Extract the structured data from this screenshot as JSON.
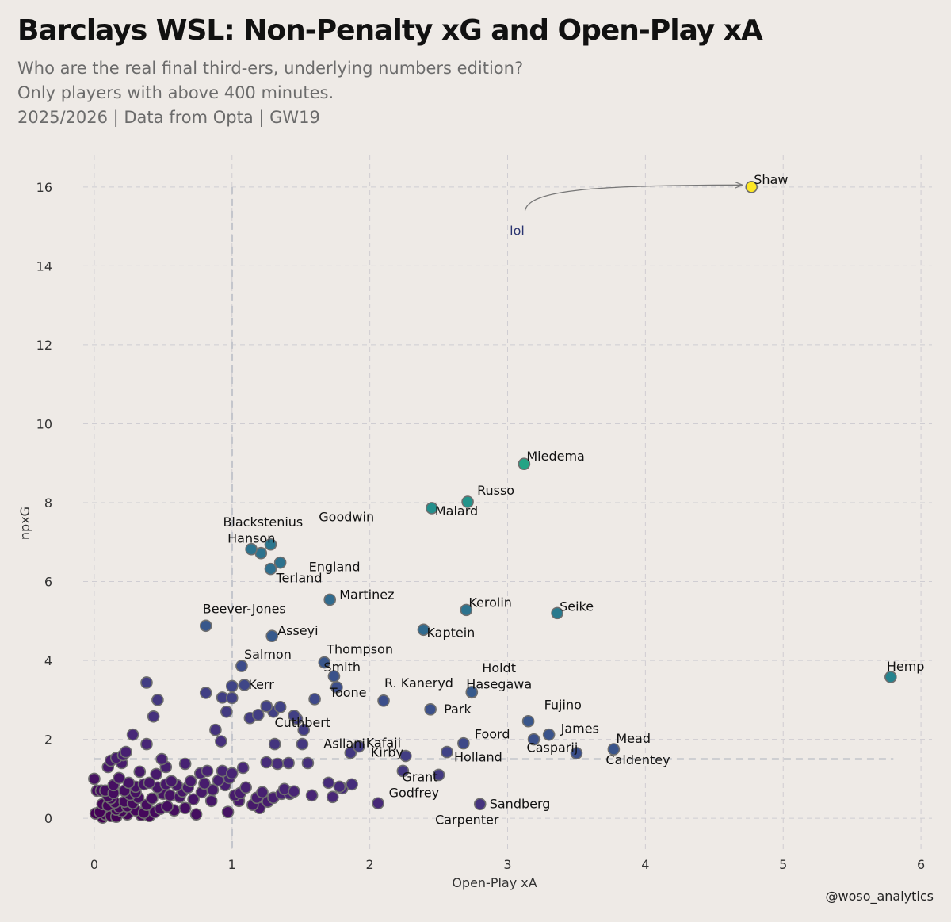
{
  "header": {
    "title": "Barclays WSL: Non-Penalty xG and Open-Play xA",
    "subtitle_line1": "Who are the real final third-ers, underlying numbers edition?",
    "subtitle_line2": "Only players with above 400 minutes.",
    "subtitle_line3": "2025/2026 | Data from Opta | GW19"
  },
  "credit": "@woso_analytics",
  "colors": {
    "background": "#eeeae6",
    "grid": "#cfcdd2",
    "refline": "#c4c6cc",
    "point_edge": "#6e6e6e",
    "annotation_text": "#2a3470",
    "viridis_low": "#440154",
    "viridis_high": "#fde725"
  },
  "chart_data": {
    "type": "scatter",
    "title": "Barclays WSL: Non-Penalty xG and Open-Play xA",
    "xlabel": "Open-Play xA",
    "ylabel": "npxG",
    "xlim": [
      -0.08,
      6.08
    ],
    "ylim": [
      -0.8,
      16.8
    ],
    "xticks": [
      0,
      1,
      2,
      3,
      4,
      5,
      6
    ],
    "yticks": [
      0,
      2,
      4,
      6,
      8,
      10,
      12,
      14,
      16
    ],
    "grid": true,
    "color_metric": "npxG + Open-Play xA (viridis)",
    "reference_lines": {
      "vertical_x": 1.0,
      "vertical_y_top": 16.0,
      "horizontal_y": 1.5,
      "horizontal_x_right": 5.8
    },
    "annotation": {
      "text": "lol",
      "x": 3.0,
      "y": 15.0,
      "arrow_to_x": 4.7,
      "arrow_to_y": 16.05
    },
    "labeled_points": [
      {
        "name": "Shaw",
        "x": 4.77,
        "y": 16.0
      },
      {
        "name": "Hemp",
        "x": 5.78,
        "y": 3.58
      },
      {
        "name": "Miedema",
        "x": 3.12,
        "y": 8.98
      },
      {
        "name": "Russo",
        "x": 2.71,
        "y": 8.02
      },
      {
        "name": "Malard",
        "x": 2.45,
        "y": 7.86
      },
      {
        "name": "Blackstenius",
        "x": 1.28,
        "y": 6.94
      },
      {
        "name": "Goodwin",
        "x": 1.21,
        "y": 6.72
      },
      {
        "name": "Hanson",
        "x": 1.14,
        "y": 6.82
      },
      {
        "name": "England",
        "x": 1.35,
        "y": 6.48
      },
      {
        "name": "Terland",
        "x": 1.28,
        "y": 6.32
      },
      {
        "name": "Martinez",
        "x": 1.71,
        "y": 5.54
      },
      {
        "name": "Kerolin",
        "x": 2.7,
        "y": 5.28
      },
      {
        "name": "Seike",
        "x": 3.36,
        "y": 5.2
      },
      {
        "name": "Beever-Jones",
        "x": 0.81,
        "y": 4.88
      },
      {
        "name": "Kaptein",
        "x": 2.39,
        "y": 4.78
      },
      {
        "name": "Asseyi",
        "x": 1.29,
        "y": 4.62
      },
      {
        "name": "Salmon",
        "x": 1.07,
        "y": 3.86
      },
      {
        "name": "Thompson",
        "x": 1.67,
        "y": 3.95
      },
      {
        "name": "Smith",
        "x": 1.74,
        "y": 3.6
      },
      {
        "name": "Holdt",
        "x": 2.74,
        "y": 3.2
      },
      {
        "name": "Hasegawa",
        "x": 2.74,
        "y": 3.19
      },
      {
        "name": "Kerr",
        "x": 1.09,
        "y": 3.38
      },
      {
        "name": "R. Kaneryd",
        "x": 2.1,
        "y": 2.98
      },
      {
        "name": "Toone",
        "x": 1.76,
        "y": 3.32
      },
      {
        "name": "Park",
        "x": 2.44,
        "y": 2.76
      },
      {
        "name": "Fujino",
        "x": 3.15,
        "y": 2.46
      },
      {
        "name": "Cuthbert",
        "x": 1.47,
        "y": 2.52
      },
      {
        "name": "Kafaji",
        "x": 1.92,
        "y": 1.82
      },
      {
        "name": "James",
        "x": 3.3,
        "y": 2.12
      },
      {
        "name": "Foord",
        "x": 2.68,
        "y": 1.9
      },
      {
        "name": "Mead",
        "x": 3.77,
        "y": 1.75
      },
      {
        "name": "Asllani",
        "x": 1.86,
        "y": 1.66
      },
      {
        "name": "Casparij",
        "x": 3.19,
        "y": 2.0
      },
      {
        "name": "Holland",
        "x": 2.56,
        "y": 1.68
      },
      {
        "name": "Caldentey",
        "x": 3.5,
        "y": 1.65
      },
      {
        "name": "Kirby",
        "x": 2.26,
        "y": 1.58
      },
      {
        "name": "Grant",
        "x": 2.24,
        "y": 1.2
      },
      {
        "name": "Godfrey",
        "x": 2.5,
        "y": 1.1
      },
      {
        "name": "Carpenter",
        "x": 2.06,
        "y": 0.38
      },
      {
        "name": "Sandberg",
        "x": 2.8,
        "y": 0.36
      }
    ],
    "points": [
      [
        0.38,
        3.44
      ],
      [
        0.46,
        3.0
      ],
      [
        0.43,
        2.58
      ],
      [
        0.28,
        2.12
      ],
      [
        0.38,
        1.88
      ],
      [
        0.21,
        1.6
      ],
      [
        0.16,
        1.53
      ],
      [
        0.23,
        1.68
      ],
      [
        0.12,
        1.46
      ],
      [
        0.2,
        1.4
      ],
      [
        0.1,
        1.3
      ],
      [
        0.18,
        1.02
      ],
      [
        0.33,
        1.18
      ],
      [
        0.49,
        1.5
      ],
      [
        0.52,
        1.3
      ],
      [
        0.45,
        1.12
      ],
      [
        0.4,
        0.9
      ],
      [
        0.36,
        0.86
      ],
      [
        0.3,
        0.8
      ],
      [
        0.25,
        0.9
      ],
      [
        0.22,
        0.7
      ],
      [
        0.14,
        0.84
      ],
      [
        0.12,
        0.5
      ],
      [
        0.05,
        0.7
      ],
      [
        0.08,
        0.7
      ],
      [
        0.02,
        0.7
      ],
      [
        0.1,
        0.56
      ],
      [
        0.15,
        0.4
      ],
      [
        0.18,
        0.28
      ],
      [
        0.04,
        0.16
      ],
      [
        0.08,
        0.1
      ],
      [
        0.12,
        0.06
      ],
      [
        0.2,
        0.18
      ],
      [
        0.24,
        0.1
      ],
      [
        0.3,
        0.2
      ],
      [
        0.34,
        0.08
      ],
      [
        0.4,
        0.06
      ],
      [
        0.44,
        0.16
      ],
      [
        0.48,
        0.24
      ],
      [
        0.53,
        0.3
      ],
      [
        0.58,
        0.2
      ],
      [
        0.62,
        0.54
      ],
      [
        0.66,
        0.26
      ],
      [
        0.55,
        0.58
      ],
      [
        0.5,
        0.62
      ],
      [
        0.46,
        0.78
      ],
      [
        0.42,
        0.5
      ],
      [
        0.38,
        0.34
      ],
      [
        0.32,
        0.52
      ],
      [
        0.26,
        0.6
      ],
      [
        0.22,
        0.42
      ],
      [
        0.16,
        0.22
      ],
      [
        0.1,
        0.32
      ],
      [
        0.06,
        0.36
      ],
      [
        0.14,
        0.64
      ],
      [
        0.28,
        0.38
      ],
      [
        0.36,
        0.14
      ],
      [
        0.01,
        0.12
      ],
      [
        0.06,
        0.02
      ],
      [
        0.16,
        0.04
      ],
      [
        0.24,
        0.3
      ],
      [
        0.3,
        0.66
      ],
      [
        0.52,
        0.86
      ],
      [
        0.56,
        0.94
      ],
      [
        0.6,
        0.84
      ],
      [
        0.66,
        1.38
      ],
      [
        0.77,
        1.14
      ],
      [
        0.82,
        1.2
      ],
      [
        0.8,
        0.88
      ],
      [
        0.86,
        0.72
      ],
      [
        0.9,
        0.96
      ],
      [
        0.95,
        0.84
      ],
      [
        0.98,
        1.02
      ],
      [
        0.93,
        1.2
      ],
      [
        0.85,
        0.44
      ],
      [
        0.78,
        0.66
      ],
      [
        0.72,
        0.48
      ],
      [
        0.7,
        0.94
      ],
      [
        0.68,
        0.78
      ],
      [
        0.64,
        0.68
      ],
      [
        0.88,
        2.24
      ],
      [
        0.81,
        3.18
      ],
      [
        0.93,
        3.06
      ],
      [
        0.96,
        2.7
      ],
      [
        1.0,
        1.14
      ],
      [
        0.97,
        0.16
      ],
      [
        1.02,
        0.58
      ],
      [
        1.06,
        0.64
      ],
      [
        1.1,
        0.78
      ],
      [
        1.05,
        0.44
      ],
      [
        1.15,
        0.34
      ],
      [
        1.22,
        0.66
      ],
      [
        1.18,
        0.52
      ],
      [
        1.26,
        0.42
      ],
      [
        1.3,
        0.52
      ],
      [
        1.36,
        0.62
      ],
      [
        1.2,
        0.26
      ],
      [
        1.08,
        1.28
      ],
      [
        1.13,
        2.54
      ],
      [
        1.19,
        2.62
      ],
      [
        1.25,
        2.84
      ],
      [
        1.3,
        2.7
      ],
      [
        1.35,
        2.82
      ],
      [
        1.45,
        2.6
      ],
      [
        1.52,
        2.24
      ],
      [
        1.6,
        3.02
      ],
      [
        1.25,
        1.42
      ],
      [
        1.33,
        1.38
      ],
      [
        1.41,
        1.4
      ],
      [
        1.31,
        1.88
      ],
      [
        1.51,
        1.88
      ],
      [
        1.55,
        1.4
      ],
      [
        1.45,
        0.68
      ],
      [
        1.38,
        0.74
      ],
      [
        1.58,
        0.58
      ],
      [
        1.7,
        0.9
      ],
      [
        1.78,
        0.8
      ],
      [
        1.8,
        0.76
      ],
      [
        1.87,
        0.86
      ],
      [
        1.73,
        0.54
      ],
      [
        0.92,
        1.95
      ],
      [
        0.0,
        1.0
      ],
      [
        1.0,
        3.35
      ],
      [
        1.0,
        3.05
      ],
      [
        1.42,
        0.62
      ],
      [
        0.74,
        0.1
      ]
    ]
  }
}
